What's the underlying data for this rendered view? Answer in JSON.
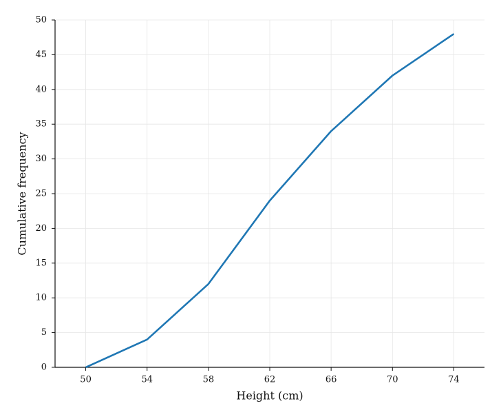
{
  "chart_data": {
    "type": "line",
    "x_label": "Height (cm)",
    "y_label": "Cumulative frequency",
    "x": [
      50,
      54,
      58,
      62,
      66,
      70,
      74
    ],
    "series": [
      {
        "color": "#1f77b4",
        "values": [
          0,
          4,
          12,
          24,
          34,
          42,
          48
        ]
      }
    ],
    "xlim": [
      48,
      76
    ],
    "xticks": [
      50,
      54,
      58,
      62,
      66,
      70,
      74
    ],
    "ylim": [
      0,
      50
    ],
    "yticks": [
      0,
      5,
      10,
      15,
      20,
      25,
      30,
      35,
      40,
      45,
      50
    ],
    "grid": true
  }
}
